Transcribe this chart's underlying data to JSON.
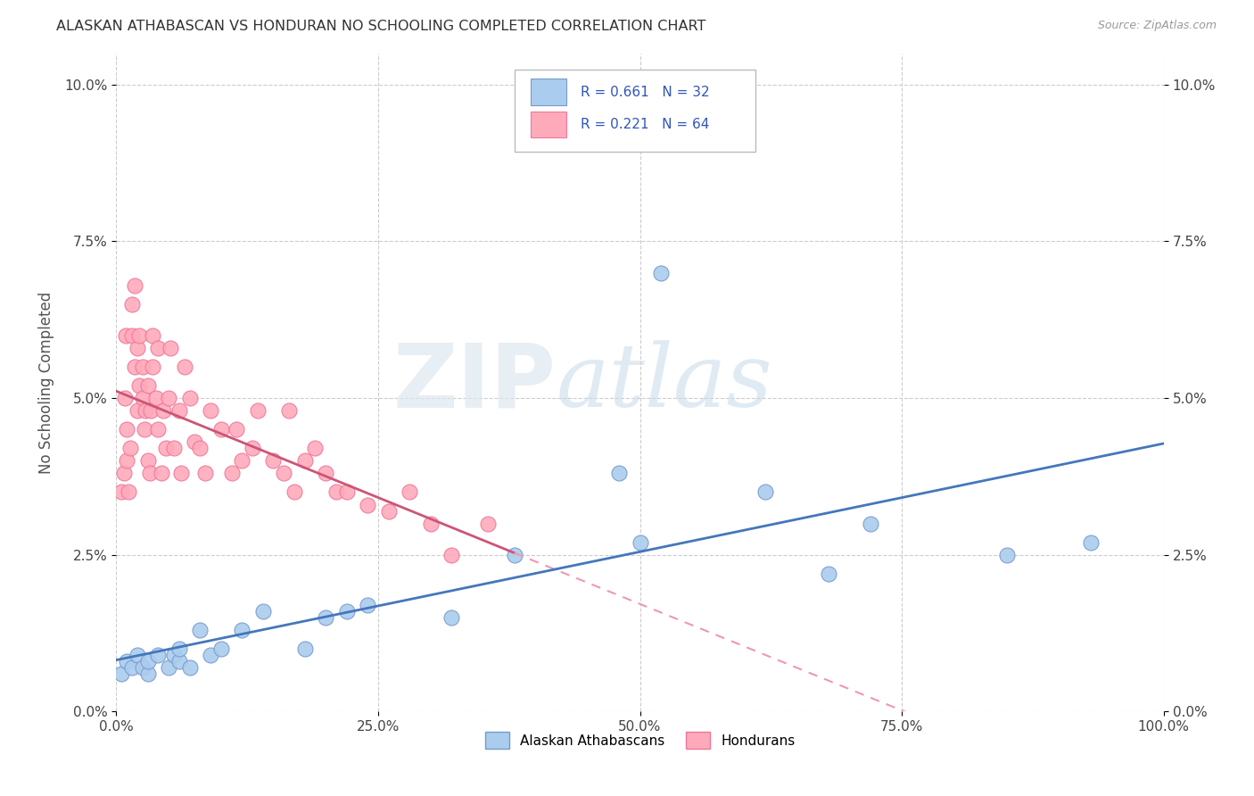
{
  "title": "ALASKAN ATHABASCAN VS HONDURAN NO SCHOOLING COMPLETED CORRELATION CHART",
  "source": "Source: ZipAtlas.com",
  "ylabel": "No Schooling Completed",
  "watermark_zip": "ZIP",
  "watermark_atlas": "atlas",
  "legend_label1": "Alaskan Athabascans",
  "legend_label2": "Hondurans",
  "R1": 0.661,
  "N1": 32,
  "R2": 0.221,
  "N2": 64,
  "color_blue_scatter": "#AACCEE",
  "color_blue_edge": "#7799CC",
  "color_blue_line": "#4477BB",
  "color_pink_scatter": "#FFAABB",
  "color_pink_edge": "#EE7799",
  "color_pink_line": "#CC5577",
  "color_pink_dash": "#EE99AA",
  "xmin": 0.0,
  "xmax": 1.0,
  "ymin": 0.0,
  "ymax": 0.105,
  "xticks": [
    0.0,
    0.25,
    0.5,
    0.75,
    1.0
  ],
  "xtick_labels": [
    "0.0%",
    "25.0%",
    "50.0%",
    "75.0%",
    "100.0%"
  ],
  "yticks": [
    0.0,
    0.025,
    0.05,
    0.075,
    0.1
  ],
  "ytick_labels": [
    "0.0%",
    "2.5%",
    "5.0%",
    "7.5%",
    "10.0%"
  ],
  "blue_x": [
    0.005,
    0.01,
    0.015,
    0.02,
    0.025,
    0.03,
    0.03,
    0.04,
    0.05,
    0.055,
    0.06,
    0.06,
    0.07,
    0.08,
    0.09,
    0.1,
    0.12,
    0.14,
    0.18,
    0.2,
    0.22,
    0.24,
    0.32,
    0.38,
    0.48,
    0.5,
    0.52,
    0.62,
    0.68,
    0.72,
    0.85,
    0.93
  ],
  "blue_y": [
    0.006,
    0.008,
    0.007,
    0.009,
    0.007,
    0.006,
    0.008,
    0.009,
    0.007,
    0.009,
    0.008,
    0.01,
    0.007,
    0.013,
    0.009,
    0.01,
    0.013,
    0.016,
    0.01,
    0.015,
    0.016,
    0.017,
    0.015,
    0.025,
    0.038,
    0.027,
    0.07,
    0.035,
    0.022,
    0.03,
    0.025,
    0.027
  ],
  "pink_x": [
    0.005,
    0.007,
    0.008,
    0.009,
    0.01,
    0.01,
    0.012,
    0.013,
    0.015,
    0.015,
    0.018,
    0.018,
    0.02,
    0.02,
    0.022,
    0.022,
    0.025,
    0.025,
    0.027,
    0.028,
    0.03,
    0.03,
    0.032,
    0.033,
    0.035,
    0.035,
    0.038,
    0.04,
    0.04,
    0.043,
    0.045,
    0.047,
    0.05,
    0.052,
    0.055,
    0.06,
    0.062,
    0.065,
    0.07,
    0.075,
    0.08,
    0.085,
    0.09,
    0.1,
    0.11,
    0.115,
    0.12,
    0.13,
    0.135,
    0.15,
    0.16,
    0.165,
    0.17,
    0.18,
    0.19,
    0.2,
    0.21,
    0.22,
    0.24,
    0.26,
    0.28,
    0.3,
    0.32,
    0.355
  ],
  "pink_y": [
    0.035,
    0.038,
    0.05,
    0.06,
    0.04,
    0.045,
    0.035,
    0.042,
    0.06,
    0.065,
    0.055,
    0.068,
    0.048,
    0.058,
    0.052,
    0.06,
    0.05,
    0.055,
    0.045,
    0.048,
    0.04,
    0.052,
    0.038,
    0.048,
    0.055,
    0.06,
    0.05,
    0.045,
    0.058,
    0.038,
    0.048,
    0.042,
    0.05,
    0.058,
    0.042,
    0.048,
    0.038,
    0.055,
    0.05,
    0.043,
    0.042,
    0.038,
    0.048,
    0.045,
    0.038,
    0.045,
    0.04,
    0.042,
    0.048,
    0.04,
    0.038,
    0.048,
    0.035,
    0.04,
    0.042,
    0.038,
    0.035,
    0.035,
    0.033,
    0.032,
    0.035,
    0.03,
    0.025,
    0.03
  ],
  "background_color": "#ffffff",
  "grid_color": "#cccccc",
  "legend_text_color": "#3355BB"
}
